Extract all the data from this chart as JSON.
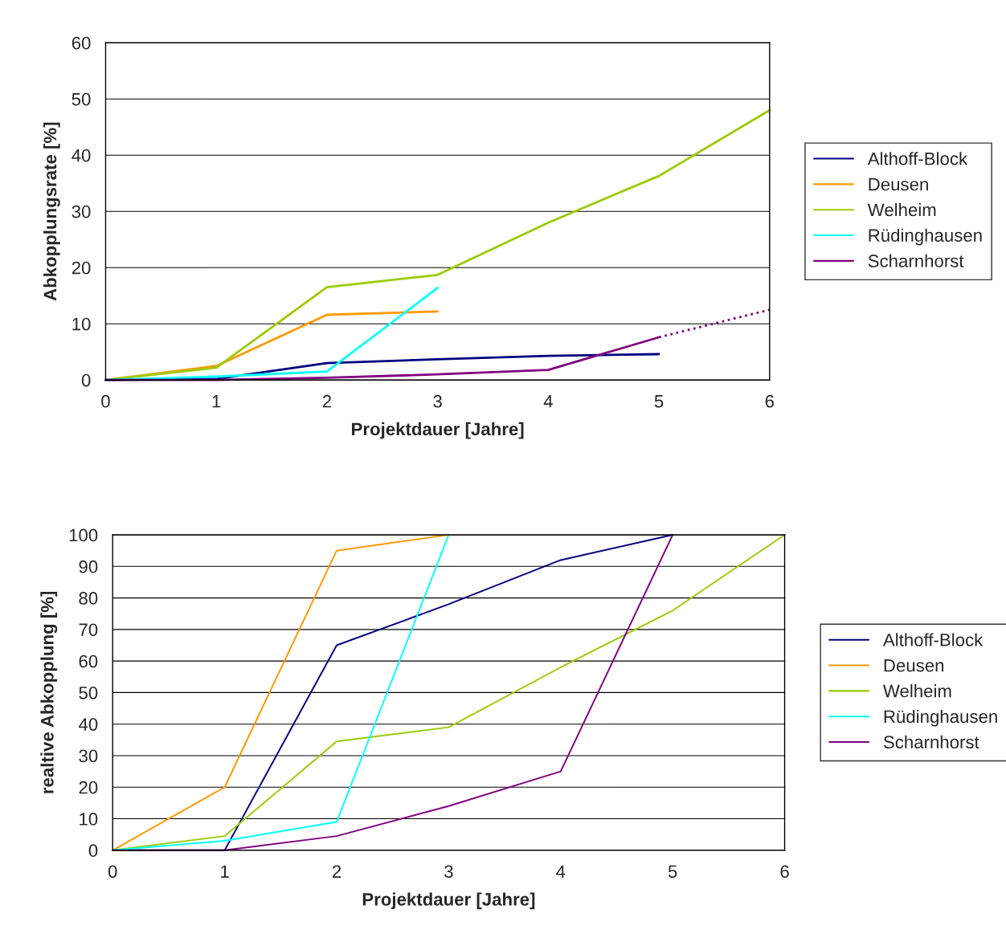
{
  "chart_data": [
    {
      "type": "line",
      "xlabel": "Projektdauer [Jahre]",
      "ylabel": "Abkopplungsrate [%]",
      "xlim": [
        0,
        6
      ],
      "ylim": [
        0,
        60
      ],
      "xticks": [
        0,
        1,
        2,
        3,
        4,
        5,
        6
      ],
      "yticks": [
        0,
        10,
        20,
        30,
        40,
        50,
        60
      ],
      "grid": "y",
      "legend": "right",
      "marker": "none",
      "series": [
        {
          "name": "Althoff-Block",
          "color": "#000080",
          "x": [
            0,
            1,
            2,
            3,
            4,
            5
          ],
          "values": [
            0,
            0.2,
            3,
            3.7,
            4.3,
            4.6
          ]
        },
        {
          "name": "Deusen",
          "color": "#ff9900",
          "x": [
            0,
            1,
            2,
            3
          ],
          "values": [
            0,
            2.5,
            11.6,
            12.2
          ]
        },
        {
          "name": "Welheim",
          "color": "#99cc00",
          "x": [
            0,
            1,
            2,
            3,
            4,
            5,
            6
          ],
          "values": [
            0,
            2.2,
            16.5,
            18.7,
            28,
            36.3,
            48
          ]
        },
        {
          "name": "Rüdinghausen",
          "color": "#00ffff",
          "x": [
            0,
            1,
            2,
            3
          ],
          "values": [
            0,
            0.6,
            1.5,
            16.4
          ]
        },
        {
          "name": "Scharnhorst",
          "color": "#800080",
          "x": [
            0,
            1,
            2,
            3,
            4,
            5
          ],
          "values": [
            0,
            0,
            0.4,
            1,
            1.8,
            7.6
          ]
        },
        {
          "color": "#800080",
          "x": [
            5,
            6
          ],
          "values": [
            7.6,
            12.5
          ],
          "line_style": "dotted"
        }
      ]
    },
    {
      "type": "line",
      "xlabel": "Projektdauer [Jahre]",
      "ylabel": "realtive Abkopplung [%]",
      "xlim": [
        0,
        6
      ],
      "ylim": [
        0,
        100
      ],
      "xticks": [
        0,
        1,
        2,
        3,
        4,
        5,
        6
      ],
      "yticks": [
        0,
        10,
        20,
        30,
        40,
        50,
        60,
        70,
        80,
        90,
        100
      ],
      "grid": "y",
      "legend": "right",
      "marker": "none",
      "series": [
        {
          "name": "Althoff-Block",
          "color": "#000080",
          "x": [
            0,
            1,
            2,
            3,
            4,
            5
          ],
          "values": [
            0,
            0,
            65,
            78,
            92,
            100
          ]
        },
        {
          "name": "Deusen",
          "color": "#ff9900",
          "x": [
            0,
            1,
            2,
            3
          ],
          "values": [
            0,
            20,
            95,
            100
          ]
        },
        {
          "name": "Welheim",
          "color": "#99cc00",
          "x": [
            0,
            1,
            2,
            3,
            4,
            5,
            6
          ],
          "values": [
            0,
            4.5,
            34.5,
            39,
            58,
            76,
            100
          ]
        },
        {
          "name": "Rüdinghausen",
          "color": "#00ffff",
          "x": [
            0,
            1,
            2,
            3
          ],
          "values": [
            0,
            3,
            9,
            100
          ]
        },
        {
          "name": "Scharnhorst",
          "color": "#800080",
          "x": [
            0,
            1,
            2,
            3,
            4,
            5
          ],
          "values": [
            0,
            0,
            4.5,
            14,
            25,
            100
          ]
        }
      ]
    }
  ]
}
